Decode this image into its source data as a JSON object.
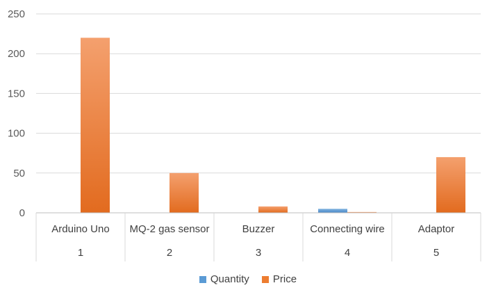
{
  "chart_data": {
    "type": "bar",
    "categories": [
      "Arduino Uno",
      "MQ-2 gas sensor",
      "Buzzer",
      "Connecting wire",
      "Adaptor"
    ],
    "category_numbers": [
      "1",
      "2",
      "3",
      "4",
      "5"
    ],
    "series": [
      {
        "name": "Quantity",
        "color": "#5b9bd5",
        "values": [
          0,
          0,
          0,
          5,
          0
        ]
      },
      {
        "name": "Price",
        "color": "#ed7d31",
        "values": [
          220,
          50,
          8,
          1,
          70
        ]
      }
    ],
    "ylim": [
      0,
      250
    ],
    "yticks": [
      0,
      50,
      100,
      150,
      200,
      250
    ],
    "grid": true,
    "legend": "bottom",
    "title": "",
    "xlabel": "",
    "ylabel": ""
  }
}
